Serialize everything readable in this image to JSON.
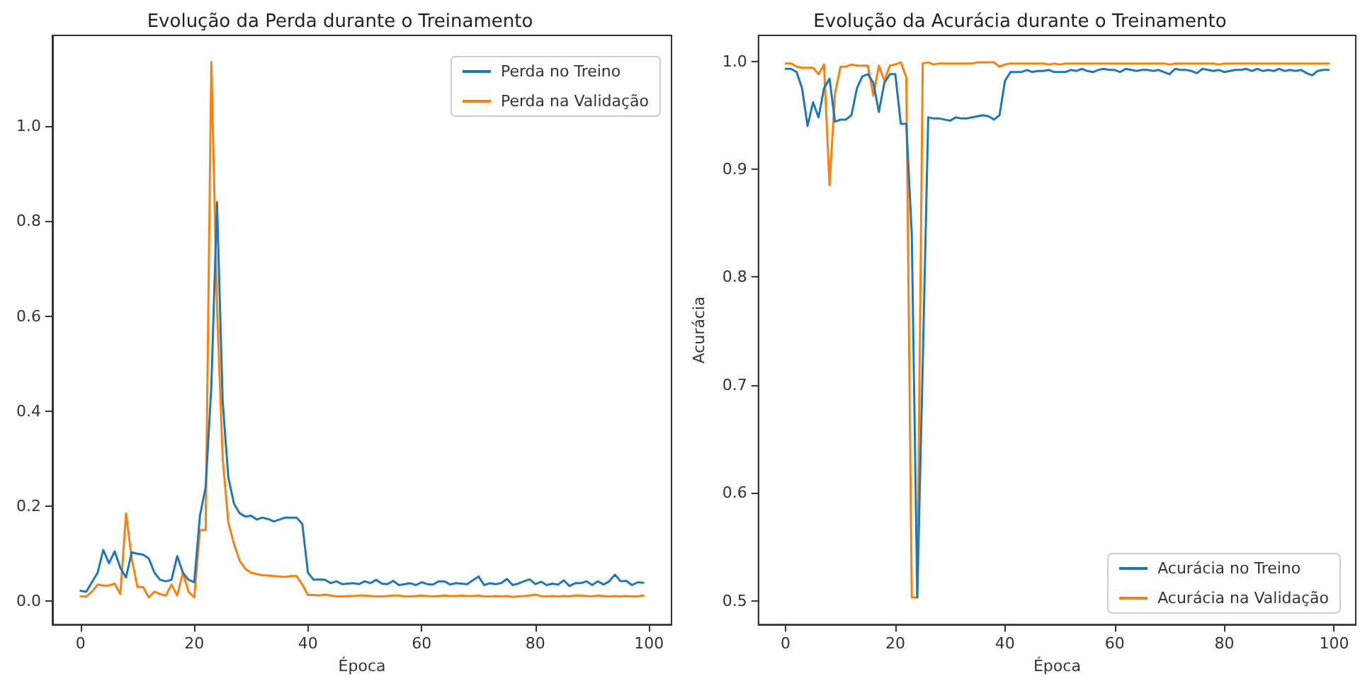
{
  "chart_data": [
    {
      "type": "line",
      "title": "Evolução da Perda durante o Treinamento",
      "xlabel": "Época",
      "x": [
        0,
        1,
        2,
        3,
        4,
        5,
        6,
        7,
        8,
        9,
        10,
        11,
        12,
        13,
        14,
        15,
        16,
        17,
        18,
        19,
        20,
        21,
        22,
        23,
        24,
        25,
        26,
        27,
        28,
        29,
        30,
        31,
        32,
        33,
        34,
        35,
        36,
        37,
        38,
        39,
        40,
        41,
        42,
        43,
        44,
        45,
        46,
        47,
        48,
        49,
        50,
        51,
        52,
        53,
        54,
        55,
        56,
        57,
        58,
        59,
        60,
        61,
        62,
        63,
        64,
        65,
        66,
        67,
        68,
        69,
        70,
        71,
        72,
        73,
        74,
        75,
        76,
        77,
        78,
        79,
        80,
        81,
        82,
        83,
        84,
        85,
        86,
        87,
        88,
        89,
        90,
        91,
        92,
        93,
        94,
        95,
        96,
        97,
        98,
        99
      ],
      "series": [
        {
          "name": "Perda no Treino",
          "color": "#1f77b4",
          "values": [
            0.022,
            0.02,
            0.04,
            0.06,
            0.108,
            0.08,
            0.105,
            0.07,
            0.05,
            0.103,
            0.1,
            0.098,
            0.09,
            0.06,
            0.045,
            0.042,
            0.045,
            0.095,
            0.06,
            0.045,
            0.04,
            0.18,
            0.24,
            0.45,
            0.84,
            0.42,
            0.26,
            0.205,
            0.185,
            0.178,
            0.18,
            0.172,
            0.176,
            0.173,
            0.168,
            0.172,
            0.176,
            0.176,
            0.176,
            0.163,
            0.06,
            0.045,
            0.046,
            0.045,
            0.038,
            0.042,
            0.036,
            0.037,
            0.038,
            0.036,
            0.042,
            0.038,
            0.045,
            0.037,
            0.036,
            0.043,
            0.034,
            0.036,
            0.038,
            0.034,
            0.04,
            0.036,
            0.035,
            0.042,
            0.042,
            0.035,
            0.038,
            0.037,
            0.036,
            0.044,
            0.052,
            0.034,
            0.038,
            0.036,
            0.038,
            0.047,
            0.034,
            0.037,
            0.042,
            0.046,
            0.036,
            0.041,
            0.034,
            0.037,
            0.035,
            0.044,
            0.032,
            0.038,
            0.038,
            0.042,
            0.034,
            0.042,
            0.035,
            0.042,
            0.056,
            0.042,
            0.043,
            0.034,
            0.04,
            0.039
          ]
        },
        {
          "name": "Perda na Validação",
          "color": "#ff7f0e",
          "values": [
            0.01,
            0.01,
            0.02,
            0.035,
            0.033,
            0.033,
            0.037,
            0.015,
            0.185,
            0.09,
            0.03,
            0.03,
            0.008,
            0.02,
            0.015,
            0.012,
            0.035,
            0.012,
            0.06,
            0.02,
            0.008,
            0.15,
            0.15,
            1.135,
            0.62,
            0.3,
            0.165,
            0.12,
            0.085,
            0.068,
            0.06,
            0.057,
            0.055,
            0.054,
            0.053,
            0.052,
            0.051,
            0.053,
            0.053,
            0.035,
            0.013,
            0.013,
            0.012,
            0.014,
            0.012,
            0.01,
            0.01,
            0.011,
            0.011,
            0.012,
            0.012,
            0.011,
            0.01,
            0.01,
            0.011,
            0.012,
            0.012,
            0.01,
            0.01,
            0.011,
            0.012,
            0.011,
            0.01,
            0.011,
            0.012,
            0.011,
            0.011,
            0.012,
            0.011,
            0.011,
            0.012,
            0.01,
            0.01,
            0.011,
            0.01,
            0.011,
            0.009,
            0.01,
            0.011,
            0.012,
            0.014,
            0.011,
            0.01,
            0.011,
            0.01,
            0.011,
            0.01,
            0.012,
            0.012,
            0.011,
            0.01,
            0.012,
            0.011,
            0.01,
            0.011,
            0.01,
            0.011,
            0.01,
            0.01,
            0.012
          ]
        }
      ],
      "xlim": [
        -4.95,
        103.95
      ],
      "xticks": [
        0,
        20,
        40,
        60,
        80,
        100
      ],
      "ylim": [
        -0.049,
        1.191
      ],
      "yticks": [
        {
          "value": 0,
          "label": "0.0"
        },
        0.2,
        0.4,
        0.6,
        0.8,
        {
          "value": 1,
          "label": "1.0"
        }
      ],
      "grid": false,
      "legend": "top right",
      "marker": "none",
      "line_style": "solid"
    },
    {
      "type": "line",
      "title": "Evolução da Acurácia durante o Treinamento",
      "xlabel": "Época",
      "ylabel": "Acurácia",
      "x": [
        0,
        1,
        2,
        3,
        4,
        5,
        6,
        7,
        8,
        9,
        10,
        11,
        12,
        13,
        14,
        15,
        16,
        17,
        18,
        19,
        20,
        21,
        22,
        23,
        24,
        25,
        26,
        27,
        28,
        29,
        30,
        31,
        32,
        33,
        34,
        35,
        36,
        37,
        38,
        39,
        40,
        41,
        42,
        43,
        44,
        45,
        46,
        47,
        48,
        49,
        50,
        51,
        52,
        53,
        54,
        55,
        56,
        57,
        58,
        59,
        60,
        61,
        62,
        63,
        64,
        65,
        66,
        67,
        68,
        69,
        70,
        71,
        72,
        73,
        74,
        75,
        76,
        77,
        78,
        79,
        80,
        81,
        82,
        83,
        84,
        85,
        86,
        87,
        88,
        89,
        90,
        91,
        92,
        93,
        94,
        95,
        96,
        97,
        98,
        99
      ],
      "series": [
        {
          "name": "Acurácia no Treino",
          "color": "#1f77b4",
          "values": [
            0.993,
            0.993,
            0.99,
            0.975,
            0.94,
            0.962,
            0.948,
            0.975,
            0.984,
            0.944,
            0.946,
            0.946,
            0.95,
            0.975,
            0.986,
            0.988,
            0.98,
            0.953,
            0.98,
            0.988,
            0.988,
            0.942,
            0.942,
            0.84,
            0.503,
            0.72,
            0.948,
            0.947,
            0.947,
            0.946,
            0.945,
            0.948,
            0.947,
            0.947,
            0.948,
            0.949,
            0.95,
            0.949,
            0.946,
            0.95,
            0.982,
            0.99,
            0.99,
            0.99,
            0.992,
            0.99,
            0.991,
            0.991,
            0.992,
            0.99,
            0.99,
            0.99,
            0.992,
            0.991,
            0.993,
            0.991,
            0.99,
            0.992,
            0.993,
            0.992,
            0.992,
            0.99,
            0.993,
            0.992,
            0.991,
            0.992,
            0.992,
            0.991,
            0.992,
            0.99,
            0.988,
            0.993,
            0.992,
            0.992,
            0.991,
            0.989,
            0.993,
            0.992,
            0.991,
            0.992,
            0.99,
            0.991,
            0.992,
            0.992,
            0.993,
            0.991,
            0.993,
            0.991,
            0.992,
            0.991,
            0.993,
            0.991,
            0.992,
            0.991,
            0.992,
            0.989,
            0.987,
            0.991,
            0.992,
            0.992
          ]
        },
        {
          "name": "Acurácia na Validação",
          "color": "#ff7f0e",
          "values": [
            0.998,
            0.998,
            0.995,
            0.994,
            0.994,
            0.994,
            0.988,
            0.997,
            0.885,
            0.97,
            0.995,
            0.995,
            0.997,
            0.996,
            0.996,
            0.996,
            0.968,
            0.996,
            0.982,
            0.996,
            0.997,
            0.999,
            0.985,
            0.503,
            0.503,
            0.998,
            0.999,
            0.997,
            0.998,
            0.998,
            0.998,
            0.998,
            0.998,
            0.998,
            0.998,
            0.999,
            0.999,
            0.999,
            0.999,
            0.995,
            0.997,
            0.998,
            0.998,
            0.998,
            0.998,
            0.998,
            0.998,
            0.998,
            0.997,
            0.998,
            0.997,
            0.998,
            0.998,
            0.998,
            0.998,
            0.998,
            0.998,
            0.998,
            0.998,
            0.998,
            0.998,
            0.998,
            0.998,
            0.998,
            0.998,
            0.998,
            0.998,
            0.998,
            0.998,
            0.998,
            0.997,
            0.998,
            0.998,
            0.998,
            0.998,
            0.998,
            0.998,
            0.998,
            0.998,
            0.997,
            0.998,
            0.998,
            0.998,
            0.998,
            0.998,
            0.998,
            0.998,
            0.998,
            0.998,
            0.998,
            0.998,
            0.998,
            0.998,
            0.998,
            0.998,
            0.998,
            0.998,
            0.998,
            0.998,
            0.998
          ]
        }
      ],
      "xlim": [
        -4.95,
        103.95
      ],
      "xticks": [
        0,
        20,
        40,
        60,
        80,
        100
      ],
      "ylim": [
        0.478,
        1.024
      ],
      "yticks": [
        {
          "value": 0.5,
          "label": "0.5"
        },
        {
          "value": 0.6,
          "label": "0.6"
        },
        {
          "value": 0.7,
          "label": "0.7"
        },
        {
          "value": 0.8,
          "label": "0.8"
        },
        {
          "value": 0.9,
          "label": "0.9"
        },
        {
          "value": 1,
          "label": "1.0"
        }
      ],
      "grid": false,
      "legend": "bottom right",
      "marker": "none",
      "line_style": "solid"
    }
  ]
}
